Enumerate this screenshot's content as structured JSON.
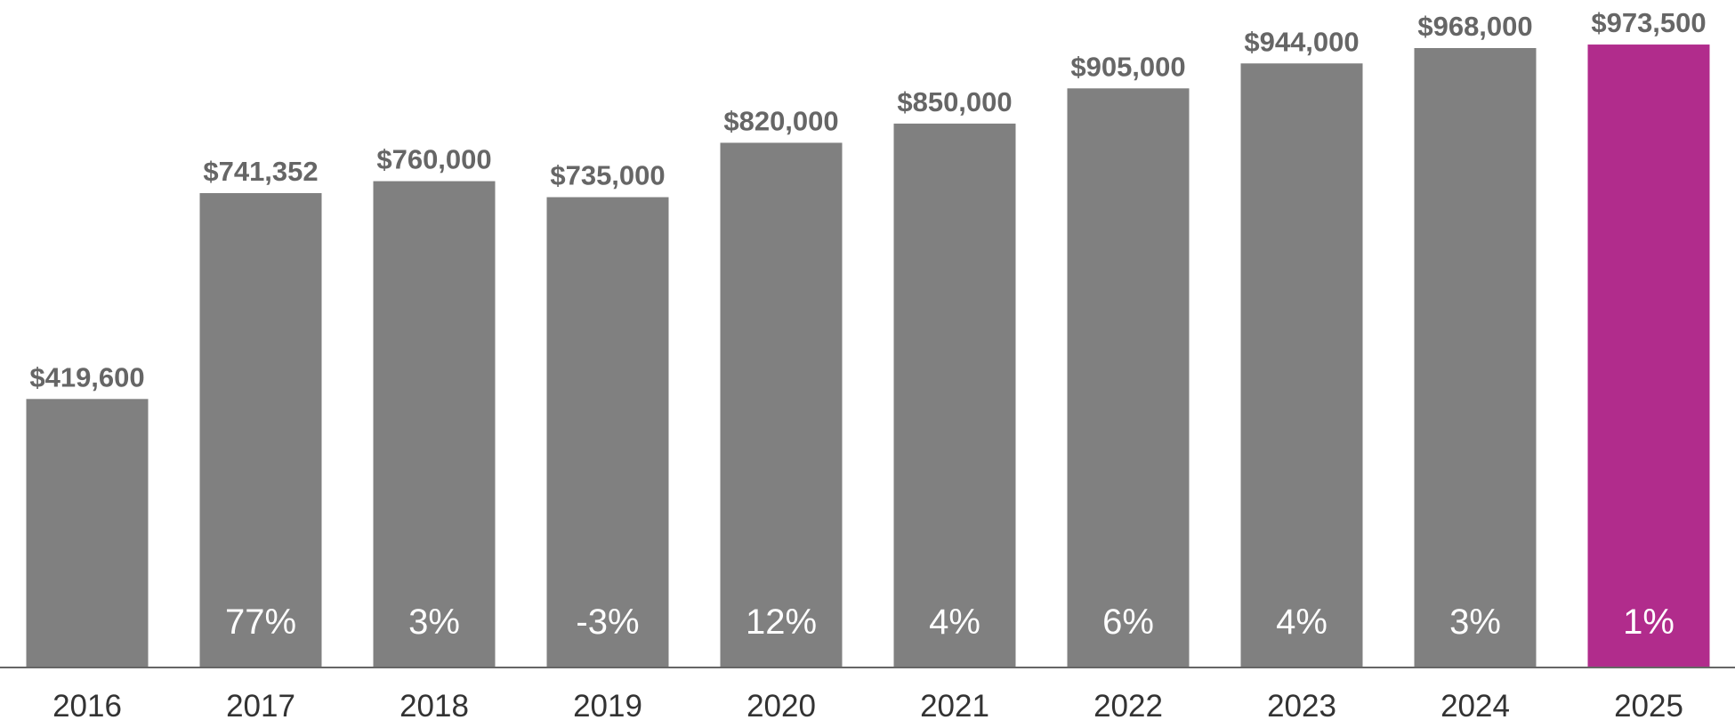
{
  "chart_data": {
    "type": "bar",
    "title": "",
    "xlabel": "",
    "ylabel": "",
    "categories": [
      "2016",
      "2017",
      "2018",
      "2019",
      "2020",
      "2021",
      "2022",
      "2023",
      "2024",
      "2025"
    ],
    "values": [
      419600,
      741352,
      760000,
      735000,
      820000,
      850000,
      905000,
      944000,
      968000,
      973500
    ],
    "value_labels": [
      "$419,600",
      "$741,352",
      "$760,000",
      "$735,000",
      "$820,000",
      "$850,000",
      "$905,000",
      "$944,000",
      "$968,000",
      "$973,500"
    ],
    "change_labels": [
      "",
      "77%",
      "3%",
      "-3%",
      "12%",
      "4%",
      "6%",
      "4%",
      "3%",
      "1%"
    ],
    "ylim": [
      0,
      1000000
    ],
    "grid": false,
    "legend": "none",
    "highlight_category": "2025",
    "colors": {
      "bar": "#808080",
      "highlight": "#b12c8c",
      "value_label": "#666666",
      "change_label": "#ffffff",
      "axis_line": "#666666",
      "year_label": "#333333"
    }
  }
}
